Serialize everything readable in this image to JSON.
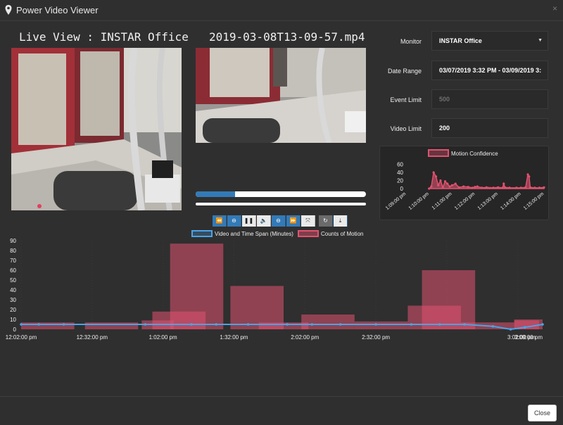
{
  "window": {
    "title": "Power Video Viewer",
    "close_glyph": "×",
    "pin_icon": "map-pin-icon"
  },
  "live": {
    "title": "Live View : INSTAR Office"
  },
  "recording": {
    "title": "2019-03-08T13-09-57.mp4",
    "progress_fraction": 0.23
  },
  "controls": [
    {
      "name": "rewind-button",
      "glyph": "⏪"
    },
    {
      "name": "slower-button",
      "glyph": "⊖"
    },
    {
      "name": "pause-button",
      "glyph": "❚❚"
    },
    {
      "name": "volume-button",
      "glyph": "🔈"
    },
    {
      "name": "faster-button",
      "glyph": "⊖"
    },
    {
      "name": "fast-forward-button",
      "glyph": "⏩"
    },
    {
      "name": "fullscreen-button",
      "glyph": "⤧"
    },
    {
      "name": "refresh-button",
      "glyph": "↻"
    },
    {
      "name": "download-button",
      "glyph": "⤓"
    }
  ],
  "form": {
    "monitor": {
      "label": "Monitor",
      "value": "INSTAR Office"
    },
    "date_range": {
      "label": "Date Range",
      "value": "03/07/2019 3:32 PM - 03/09/2019 3:"
    },
    "event_limit": {
      "label": "Event Limit",
      "value": "500"
    },
    "video_limit": {
      "label": "Video Limit",
      "value": "200"
    }
  },
  "colors": {
    "accent": "#337ab7",
    "motion": "#e0526f",
    "line": "#4aa3e8",
    "panel": "#2f2f2f"
  },
  "chart_data": [
    {
      "type": "area",
      "legend": [
        "Motion Confidence"
      ],
      "legend_placement": "top",
      "y_ticks": [
        "60",
        "40",
        "20",
        "0"
      ],
      "ylim": [
        0,
        70
      ],
      "x_ticks": [
        "1:09:00 pm",
        "1:10:00 pm",
        "1:11:00 pm",
        "1:12:00 pm",
        "1:13:00 pm",
        "1:14:00 pm",
        "1:15:00 pm"
      ],
      "series": [
        {
          "name": "Motion Confidence",
          "x": [
            1.0,
            1.1,
            1.2,
            1.3,
            1.4,
            1.5,
            1.6,
            1.7,
            1.8,
            1.9,
            2.0,
            2.15,
            2.3,
            2.5,
            2.7,
            2.9,
            3.0,
            3.1,
            3.3,
            3.5,
            3.8,
            4.0,
            4.2,
            4.25,
            4.3,
            4.5,
            4.8,
            5.0,
            5.2,
            5.3,
            5.35,
            5.4,
            5.6,
            5.8,
            6.0
          ],
          "values": [
            0,
            5,
            40,
            30,
            8,
            20,
            3,
            18,
            12,
            5,
            8,
            12,
            3,
            5,
            4,
            2,
            4,
            5,
            2,
            3,
            2,
            3,
            2,
            12,
            3,
            2,
            2,
            2,
            3,
            35,
            30,
            3,
            2,
            2,
            3
          ]
        }
      ]
    },
    {
      "type": "bar",
      "legend": [
        "Video and Time Span (Minutes)",
        "Counts of Motion"
      ],
      "legend_placement": "top",
      "y_ticks": [
        "90",
        "80",
        "70",
        "60",
        "50",
        "40",
        "30",
        "20",
        "10",
        "0"
      ],
      "ylim": [
        0,
        90
      ],
      "x_ticks": [
        "12:02:00 pm",
        "12:32:00 pm",
        "1:02:00 pm",
        "1:32:00 pm",
        "2:02:00 pm",
        "2:32:00 pm",
        "3:02:00 pm",
        "3:09:00 pm"
      ],
      "bars": [
        {
          "x0": 0,
          "x1": 15,
          "value": 7
        },
        {
          "x0": 18,
          "x1": 33,
          "value": 7
        },
        {
          "x0": 34,
          "x1": 43,
          "value": 9
        },
        {
          "x0": 37,
          "x1": 52,
          "value": 18
        },
        {
          "x0": 42,
          "x1": 57,
          "value": 87
        },
        {
          "x0": 59,
          "x1": 74,
          "value": 44
        },
        {
          "x0": 67,
          "x1": 81,
          "value": 7
        },
        {
          "x0": 79,
          "x1": 94,
          "value": 15
        },
        {
          "x0": 94,
          "x1": 109,
          "value": 8
        },
        {
          "x0": 109,
          "x1": 124,
          "value": 24
        },
        {
          "x0": 113,
          "x1": 128,
          "value": 60
        },
        {
          "x0": 124,
          "x1": 139,
          "value": 7
        },
        {
          "x0": 139,
          "x1": 146,
          "value": 9
        },
        {
          "x0": 139,
          "x1": 147,
          "value": 10
        }
      ],
      "line": {
        "name": "Video and Time Span (Minutes)",
        "x": [
          0,
          5,
          12,
          35,
          48,
          55,
          64,
          75,
          82,
          90,
          100,
          110,
          118,
          125,
          133,
          138,
          142,
          147
        ],
        "values": [
          5,
          5,
          5,
          5,
          5,
          5,
          5,
          5,
          5,
          5,
          5,
          5,
          5,
          5,
          3,
          0,
          2,
          5
        ]
      },
      "xlim": [
        0,
        147
      ]
    }
  ]
}
